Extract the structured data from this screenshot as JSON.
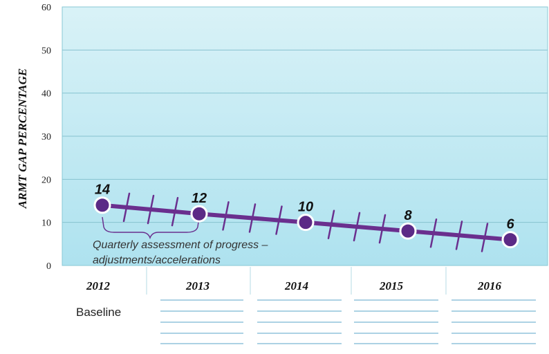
{
  "chart_data": {
    "type": "line",
    "ylabel": "ARMT GAP PERCENTAGE",
    "ylim": [
      0,
      60
    ],
    "yticks": [
      "0",
      "10",
      "20",
      "30",
      "40",
      "50",
      "60"
    ],
    "x": [
      "2012",
      "2013",
      "2014",
      "2015",
      "2016"
    ],
    "values": [
      14,
      12,
      10,
      8,
      6
    ],
    "data_labels": [
      "14",
      "12",
      "10",
      "8",
      "6"
    ],
    "annotation": [
      "Quarterly assessment of progress –",
      "adjustments/accelerations"
    ],
    "quarterly_ticks_per_interval": 3,
    "grid": true,
    "colors": {
      "line": "#6a2f8e",
      "marker": "#5b2a86",
      "bg_top": "#d9f2f7",
      "bg_bottom": "#aee2ef"
    }
  },
  "table": {
    "years": [
      "2012",
      "2013",
      "2014",
      "2015",
      "2016"
    ],
    "row_label": "Baseline"
  }
}
